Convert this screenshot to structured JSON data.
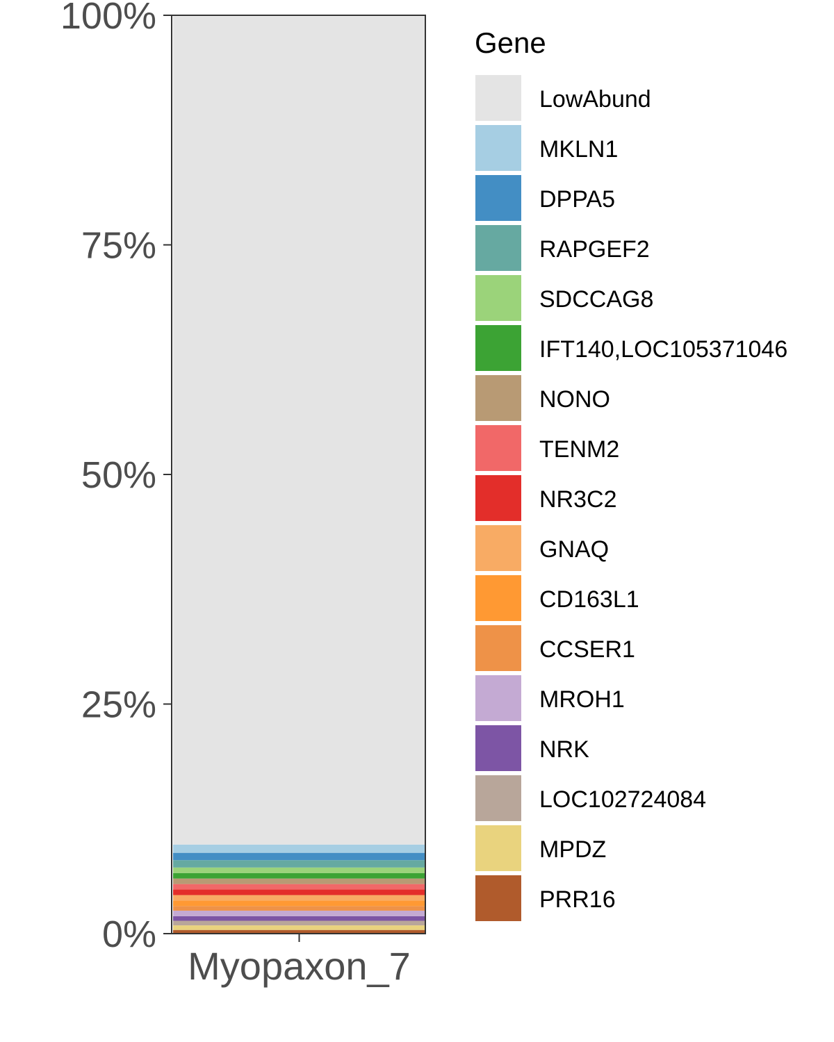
{
  "chart_data": {
    "type": "bar",
    "stacked": true,
    "categories": [
      "Myopaxon_7"
    ],
    "xlabel": "",
    "ylabel": "",
    "ylim": [
      0,
      100
    ],
    "y_ticks": [
      0,
      25,
      50,
      75,
      100
    ],
    "y_tick_labels": [
      "0%",
      "25%",
      "50%",
      "75%",
      "100%"
    ],
    "grid": false,
    "legend": {
      "title": "Gene",
      "position": "right"
    },
    "series": [
      {
        "name": "LowAbund",
        "color": "#E4E4E4",
        "values": [
          90.2
        ]
      },
      {
        "name": "MKLN1",
        "color": "#A6CEE3",
        "values": [
          0.9
        ]
      },
      {
        "name": "DPPA5",
        "color": "#438EC4",
        "values": [
          0.8
        ]
      },
      {
        "name": "RAPGEF2",
        "color": "#66A9A1",
        "values": [
          0.8
        ]
      },
      {
        "name": "SDCCAG8",
        "color": "#9BD37A",
        "values": [
          0.6
        ]
      },
      {
        "name": "IFT140,LOC105371046",
        "color": "#3CA334",
        "values": [
          0.6
        ]
      },
      {
        "name": "NONO",
        "color": "#B89A74",
        "values": [
          0.6
        ]
      },
      {
        "name": "TENM2",
        "color": "#F16868",
        "values": [
          0.6
        ]
      },
      {
        "name": "NR3C2",
        "color": "#E32E2A",
        "values": [
          0.6
        ]
      },
      {
        "name": "GNAQ",
        "color": "#F8AB64",
        "values": [
          0.6
        ]
      },
      {
        "name": "CD163L1",
        "color": "#FF9933",
        "values": [
          0.6
        ]
      },
      {
        "name": "CCSER1",
        "color": "#EE9248",
        "values": [
          0.5
        ]
      },
      {
        "name": "MROH1",
        "color": "#C4AAD3",
        "values": [
          0.6
        ]
      },
      {
        "name": "NRK",
        "color": "#7D55A5",
        "values": [
          0.5
        ]
      },
      {
        "name": "LOC102724084",
        "color": "#B8A69A",
        "values": [
          0.5
        ]
      },
      {
        "name": "MPDZ",
        "color": "#E9D37E",
        "values": [
          0.5
        ]
      },
      {
        "name": "PRR16",
        "color": "#B05B2C",
        "values": [
          0.4
        ]
      }
    ]
  }
}
